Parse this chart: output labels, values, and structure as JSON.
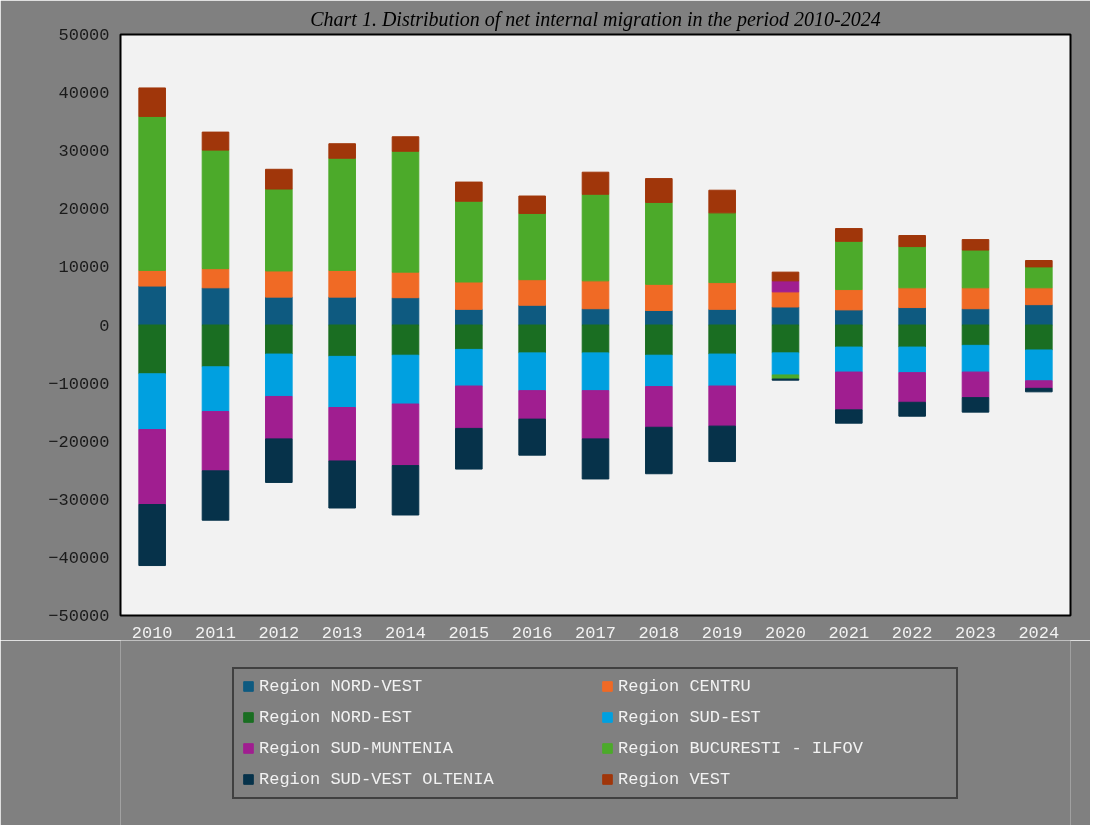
{
  "chart_data": {
    "type": "bar",
    "stacked": true,
    "title": "Chart 1. Distribution of net internal migration in the period 2010-2024",
    "categories": [
      "2010",
      "2011",
      "2012",
      "2013",
      "2014",
      "2015",
      "2016",
      "2017",
      "2018",
      "2019",
      "2020",
      "2021",
      "2022",
      "2023",
      "2024"
    ],
    "series": [
      {
        "name": "Region NORD-VEST",
        "color": "#0e5a80",
        "values": [
          6700,
          6400,
          4800,
          4800,
          4700,
          2700,
          3400,
          2800,
          2500,
          2700,
          3100,
          2600,
          3000,
          2800,
          3500
        ]
      },
      {
        "name": "Region CENTRU",
        "color": "#f06a25",
        "values": [
          2700,
          3300,
          4500,
          4600,
          4400,
          4700,
          4400,
          4800,
          4500,
          4600,
          2600,
          3500,
          3400,
          3600,
          2900
        ]
      },
      {
        "name": "Region NORD-EST",
        "color": "#1a6e22",
        "values": [
          -8400,
          -7200,
          -5000,
          -5400,
          -5200,
          -4200,
          -4800,
          -4800,
          -5200,
          -5000,
          -4800,
          -3800,
          -3800,
          -3500,
          -4300
        ]
      },
      {
        "name": "Region SUD-EST",
        "color": "#00a0e0",
        "values": [
          -9600,
          -7700,
          -7300,
          -8800,
          -8400,
          -6300,
          -6500,
          -6500,
          -5400,
          -5500,
          -3800,
          -4300,
          -4400,
          -4600,
          -5300
        ]
      },
      {
        "name": "Region SUD-MUNTENIA",
        "color": "#a01e90",
        "values": [
          -12900,
          -10200,
          -7300,
          -9200,
          -10600,
          -7300,
          -4900,
          -8300,
          -7000,
          -6900,
          1900,
          -6500,
          -5100,
          -4400,
          -1300
        ]
      },
      {
        "name": "Region BUCURESTI - ILFOV",
        "color": "#4caa2a",
        "values": [
          26500,
          20400,
          14100,
          19300,
          20800,
          13900,
          11400,
          14900,
          14100,
          12000,
          -700,
          8300,
          7100,
          6500,
          3600
        ]
      },
      {
        "name": "Region SUD-VEST OLTENIA",
        "color": "#06324a",
        "values": [
          -10500,
          -8500,
          -7500,
          -8100,
          -8500,
          -7000,
          -6200,
          -6900,
          -8000,
          -6100,
          -200,
          -2300,
          -2400,
          -2500,
          -600
        ]
      },
      {
        "name": "Region VEST",
        "color": "#a0360a",
        "values": [
          4900,
          3100,
          3400,
          2500,
          2500,
          3300,
          3000,
          3800,
          4100,
          3900,
          1500,
          2200,
          1900,
          1800,
          1100
        ]
      }
    ],
    "ylim": [
      -50000,
      50000
    ],
    "yticks": [
      -50000,
      -40000,
      -30000,
      -20000,
      -10000,
      0,
      10000,
      20000,
      30000,
      40000,
      50000
    ],
    "grid": false,
    "legend": "bottom"
  }
}
